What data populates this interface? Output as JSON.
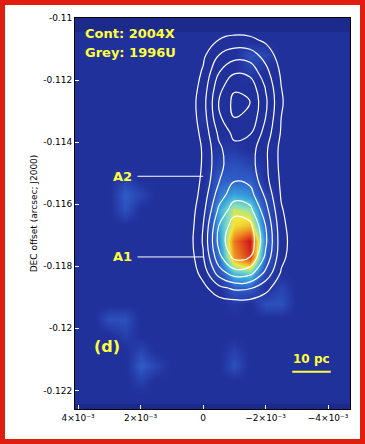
{
  "chart_data": {
    "type": "heatmap",
    "ylabel": "DEC offset (arcsec; J2000)",
    "xlim": [
      0.0041,
      -0.0047
    ],
    "ylim": [
      -0.1226,
      -0.11
    ],
    "xticks": [
      {
        "value": 0.004,
        "label": "4×10⁻³"
      },
      {
        "value": 0.002,
        "label": "2×10⁻³"
      },
      0,
      {
        "value": -0.002,
        "label": "−2×10⁻³"
      },
      {
        "value": -0.004,
        "label": "−4×10⁻³"
      }
    ],
    "yticks": [
      -0.11,
      -0.112,
      -0.114,
      -0.116,
      -0.118,
      -0.12,
      -0.122
    ],
    "annotations": [
      "Cont: 2004X",
      "Grey: 1996U",
      "A2",
      "A1",
      "(d)",
      "10 pc"
    ],
    "heatmap": {
      "x": [
        0.004,
        0.0035,
        0.003,
        0.0025,
        0.002,
        0.0015,
        0.001,
        0.0005,
        0,
        -0.0005,
        -0.001,
        -0.0015,
        -0.002,
        -0.0025,
        -0.003,
        -0.0035,
        -0.004,
        -0.0045
      ],
      "y": [
        -0.1107,
        -0.1112,
        -0.1117,
        -0.1122,
        -0.1127,
        -0.1132,
        -0.1137,
        -0.1142,
        -0.1147,
        -0.1152,
        -0.1157,
        -0.1162,
        -0.1167,
        -0.1172,
        -0.1177,
        -0.1182,
        -0.1187,
        -0.1192,
        -0.1197,
        -0.1202,
        -0.1207,
        -0.1212,
        -0.1217,
        -0.1222
      ],
      "z": [
        [
          1,
          1,
          1,
          1,
          1,
          1,
          1,
          1,
          1,
          1,
          1,
          1,
          1,
          1,
          1,
          1,
          1,
          1
        ],
        [
          1,
          1,
          1,
          1,
          1,
          1,
          1,
          1,
          1,
          1,
          1,
          2.5,
          2,
          1,
          1,
          1,
          1,
          1
        ],
        [
          1,
          1,
          1,
          1,
          1,
          1,
          1,
          1,
          1,
          1,
          1,
          1.8,
          1,
          1,
          1,
          1,
          1,
          1
        ],
        [
          1,
          1,
          1,
          1,
          1,
          1,
          1,
          1,
          1,
          1,
          1,
          1,
          1,
          1,
          1,
          1,
          1,
          1
        ],
        [
          1,
          1,
          1,
          1,
          1,
          1,
          1,
          1,
          1,
          1,
          1,
          1,
          1,
          1,
          1,
          1,
          1,
          1
        ],
        [
          1,
          1,
          1,
          1,
          1,
          1,
          1,
          1,
          1.5,
          1,
          1,
          1,
          1,
          1,
          1,
          1,
          1,
          1
        ],
        [
          1,
          1,
          1,
          1,
          1,
          1,
          1,
          1,
          1,
          1,
          1,
          1,
          1,
          1,
          1,
          1,
          1,
          1
        ],
        [
          1,
          1,
          1,
          1,
          1,
          1,
          1,
          1,
          1,
          1.5,
          1.5,
          1,
          1,
          1,
          1,
          1,
          1,
          1
        ],
        [
          1,
          1,
          1,
          1,
          1,
          1,
          1,
          1,
          1,
          2,
          2.5,
          2,
          1,
          1,
          1,
          1,
          1,
          1
        ],
        [
          1,
          1,
          1,
          1.8,
          1,
          1,
          1,
          1,
          1,
          3,
          3,
          3,
          1,
          1,
          1,
          1,
          1,
          1
        ],
        [
          1,
          1,
          1,
          3,
          2,
          1,
          1,
          1,
          1,
          3.5,
          4.5,
          4,
          2,
          1,
          1,
          1,
          1,
          1
        ],
        [
          1,
          1,
          1,
          2.5,
          1,
          1,
          1,
          1,
          1,
          4.5,
          6.5,
          6,
          2.5,
          1,
          1,
          1,
          1,
          1
        ],
        [
          1,
          1,
          1,
          1,
          1,
          1,
          1,
          1,
          1,
          4.5,
          7,
          7.5,
          3,
          1,
          1,
          1,
          1,
          1
        ],
        [
          1,
          1,
          1,
          1,
          1,
          1,
          1,
          1,
          1,
          4,
          8.5,
          10,
          3.5,
          1,
          1,
          1,
          1,
          1
        ],
        [
          1,
          1,
          1,
          1,
          1,
          1,
          1,
          1,
          1,
          3.5,
          8,
          9.5,
          3,
          1,
          1,
          1,
          1,
          1
        ],
        [
          1,
          1,
          1,
          1,
          1,
          1,
          1,
          1,
          1,
          2.5,
          5,
          5.5,
          2,
          1,
          1,
          1,
          1,
          1
        ],
        [
          1,
          1,
          1,
          1,
          1,
          1,
          1,
          1,
          1,
          1,
          3,
          3,
          1,
          2,
          1,
          1,
          1,
          1
        ],
        [
          1,
          1,
          1,
          1,
          1,
          1,
          1,
          1,
          1,
          1,
          1.5,
          1,
          2.5,
          2.5,
          1,
          1,
          1,
          1
        ],
        [
          1,
          1,
          2.5,
          2.5,
          1,
          1,
          1,
          1,
          1,
          1,
          1,
          1,
          1,
          1,
          1,
          1,
          1,
          1
        ],
        [
          1,
          1,
          1,
          1.8,
          1,
          1,
          1,
          1,
          1,
          1,
          1,
          1,
          1,
          1,
          1,
          1,
          1,
          1
        ],
        [
          1,
          1,
          1,
          1,
          2,
          1,
          1,
          1,
          1,
          1,
          1.8,
          1,
          1,
          1,
          1,
          1,
          1,
          1
        ],
        [
          1,
          1,
          1,
          1,
          3,
          2,
          1,
          1,
          1,
          1,
          2.5,
          1,
          1,
          1,
          1,
          1,
          1,
          1
        ],
        [
          1,
          1,
          1,
          1,
          1.8,
          1,
          1,
          1,
          1,
          1,
          1,
          1,
          1,
          1,
          1,
          1,
          1,
          1
        ],
        [
          1,
          1,
          1,
          1,
          1,
          1,
          1,
          1,
          1,
          1,
          1,
          1,
          1,
          1,
          1,
          1,
          1,
          1
        ]
      ],
      "zlim": [
        0,
        10
      ]
    },
    "contours": {
      "x": [
        0.0005,
        0,
        -0.0005,
        -0.001,
        -0.0015,
        -0.002,
        -0.0025,
        -0.003,
        -0.0035,
        -0.004
      ],
      "y": [
        -0.1102,
        -0.1107,
        -0.1112,
        -0.1117,
        -0.1122,
        -0.1127,
        -0.1132,
        -0.1137,
        -0.1142,
        -0.1147,
        -0.1152,
        -0.1157,
        -0.1162,
        -0.1167,
        -0.1172,
        -0.1177,
        -0.1182,
        -0.1187,
        -0.1192,
        -0.1197,
        -0.1202
      ],
      "z": [
        [
          0,
          0.1,
          0.2,
          0.3,
          0.3,
          0.2,
          0.1,
          0,
          0,
          0
        ],
        [
          0.1,
          0.4,
          1,
          1.3,
          1.2,
          0.8,
          0.3,
          0.1,
          0,
          0
        ],
        [
          0.1,
          0.8,
          2,
          2.6,
          2.5,
          1.6,
          0.5,
          0.1,
          0,
          0
        ],
        [
          0.2,
          1.1,
          2.9,
          3.8,
          3.6,
          2.3,
          0.8,
          0.2,
          0,
          0
        ],
        [
          0.2,
          1.4,
          3.6,
          4.8,
          4.6,
          2.9,
          1,
          0.2,
          0,
          0
        ],
        [
          0.3,
          1.6,
          4,
          5.3,
          5,
          3.2,
          1.1,
          0.3,
          0,
          0
        ],
        [
          0.3,
          1.5,
          3.8,
          5,
          4.8,
          3,
          1,
          0.3,
          0,
          0
        ],
        [
          0.2,
          1.3,
          3.2,
          4.3,
          4.1,
          2.6,
          0.9,
          0.2,
          0,
          0
        ],
        [
          0.2,
          1.1,
          2.8,
          3.7,
          3.5,
          2.2,
          0.7,
          0.2,
          0,
          0
        ],
        [
          0.2,
          1.1,
          2.7,
          3.6,
          3.4,
          2.2,
          0.7,
          0.2,
          0,
          0
        ],
        [
          0.2,
          1.2,
          2.9,
          3.9,
          3.7,
          2.3,
          0.8,
          0.2,
          0,
          0
        ],
        [
          0.2,
          1.4,
          3.5,
          4.6,
          4.4,
          2.8,
          0.9,
          0.2,
          0,
          0
        ],
        [
          0.3,
          1.7,
          4.2,
          5.6,
          5.3,
          3.4,
          1.1,
          0.3,
          0,
          0
        ],
        [
          0.3,
          2,
          5,
          6.6,
          6.3,
          4,
          1.3,
          0.3,
          0,
          0
        ],
        [
          0.4,
          2.1,
          5.3,
          7,
          6.7,
          4.2,
          1.4,
          0.4,
          0,
          0
        ],
        [
          0.3,
          1.9,
          4.7,
          6.3,
          6,
          3.8,
          1.3,
          0.3,
          0,
          0
        ],
        [
          0.2,
          1.4,
          3.5,
          4.6,
          4.4,
          2.8,
          0.9,
          0.2,
          0,
          0
        ],
        [
          0.1,
          0.7,
          1.7,
          2.2,
          2.1,
          1.3,
          0.4,
          0.1,
          0,
          0
        ],
        [
          0,
          0.2,
          0.5,
          0.6,
          0.6,
          0.4,
          0.1,
          0,
          0,
          0
        ],
        [
          0,
          0,
          0.1,
          0.1,
          0.1,
          0.1,
          0,
          0,
          0,
          0
        ],
        [
          0,
          0,
          0,
          0,
          0,
          0,
          0,
          0,
          0,
          0
        ]
      ],
      "levels": [
        1,
        2,
        3,
        4,
        5,
        6
      ]
    }
  }
}
